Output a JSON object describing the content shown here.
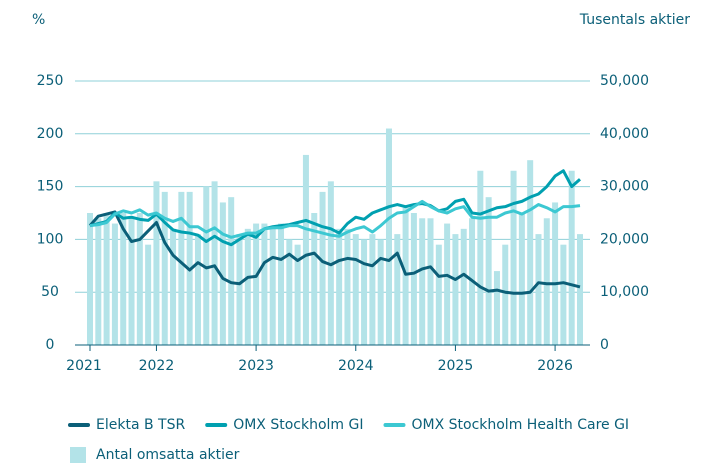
{
  "chart_data": {
    "type": "combo",
    "y_label": "%",
    "y2_label": "Tusentals aktier",
    "categories": [
      "2021",
      null,
      null,
      null,
      null,
      null,
      null,
      null,
      "2022",
      null,
      null,
      null,
      null,
      null,
      null,
      null,
      null,
      null,
      null,
      null,
      "2023",
      null,
      null,
      null,
      null,
      null,
      null,
      null,
      null,
      null,
      null,
      null,
      "2024",
      null,
      null,
      null,
      null,
      null,
      null,
      null,
      null,
      null,
      null,
      null,
      "2025",
      null,
      null,
      null,
      null,
      null,
      null,
      null,
      null,
      null,
      null,
      null,
      "2026",
      null,
      null,
      null
    ],
    "ylim": [
      0,
      250
    ],
    "yticks": [
      0,
      50,
      100,
      150,
      200,
      250
    ],
    "y2lim": [
      0,
      50000
    ],
    "y2ticks": [
      0,
      {
        "value": 10000,
        "label": "10,000"
      },
      {
        "value": 20000,
        "label": "20,000"
      },
      {
        "value": 30000,
        "label": "30,000"
      },
      {
        "value": 40000,
        "label": "40,000"
      },
      {
        "value": 50000,
        "label": "50,000"
      }
    ],
    "grid": true,
    "legend": "bottom",
    "series": [
      {
        "name": "Antal omsatta aktier",
        "type": "bar",
        "axis": "y2",
        "color": "#b3e3e8",
        "values": [
          25000,
          24000,
          25000,
          23000,
          25000,
          24000,
          25000,
          19000,
          31000,
          29000,
          22000,
          29000,
          29000,
          21000,
          30000,
          31000,
          27000,
          28000,
          21000,
          22000,
          23000,
          23000,
          22000,
          23000,
          20000,
          19000,
          36000,
          25000,
          29000,
          31000,
          22000,
          22000,
          21000,
          20000,
          21000,
          20000,
          41000,
          21000,
          26000,
          25000,
          24000,
          24000,
          19000,
          23000,
          21000,
          22000,
          24000,
          33000,
          28000,
          14000,
          19000,
          33000,
          25000,
          35000,
          21000,
          24000,
          27000,
          19000,
          33000,
          21000
        ]
      },
      {
        "name": "Elekta B TSR",
        "type": "line",
        "color": "#0b5f78",
        "values": [
          113,
          122,
          124,
          126,
          110,
          98,
          100,
          108,
          116,
          97,
          85,
          78,
          71,
          78,
          73,
          75,
          63,
          59,
          58,
          64,
          65,
          78,
          83,
          81,
          86,
          80,
          85,
          87,
          79,
          76,
          80,
          82,
          81,
          77,
          75,
          82,
          80,
          87,
          67,
          68,
          72,
          74,
          65,
          66,
          62,
          67,
          61,
          55,
          51,
          52,
          50,
          49,
          49,
          50,
          59,
          58,
          58,
          59,
          57,
          55
        ]
      },
      {
        "name": "OMX Stockholm GI",
        "type": "line",
        "color": "#00a0b0",
        "values": [
          113,
          115,
          117,
          125,
          120,
          121,
          119,
          118,
          124,
          116,
          109,
          107,
          106,
          104,
          98,
          103,
          98,
          95,
          100,
          105,
          102,
          110,
          112,
          113,
          114,
          116,
          118,
          115,
          112,
          110,
          106,
          115,
          121,
          119,
          125,
          128,
          131,
          133,
          131,
          133,
          134,
          132,
          127,
          129,
          136,
          138,
          125,
          124,
          127,
          130,
          131,
          134,
          136,
          140,
          143,
          150,
          160,
          165,
          150,
          157
        ]
      },
      {
        "name": "OMX Stockholm Health Care GI",
        "type": "line",
        "color": "#3cc8d2",
        "values": [
          113,
          114,
          116,
          124,
          127,
          125,
          128,
          123,
          125,
          120,
          117,
          120,
          112,
          112,
          107,
          111,
          105,
          102,
          104,
          106,
          106,
          110,
          111,
          111,
          113,
          113,
          110,
          108,
          106,
          104,
          103,
          107,
          110,
          112,
          107,
          113,
          120,
          125,
          126,
          131,
          136,
          131,
          127,
          125,
          129,
          131,
          121,
          120,
          121,
          121,
          125,
          127,
          124,
          128,
          133,
          130,
          126,
          131,
          131,
          132
        ]
      }
    ]
  }
}
